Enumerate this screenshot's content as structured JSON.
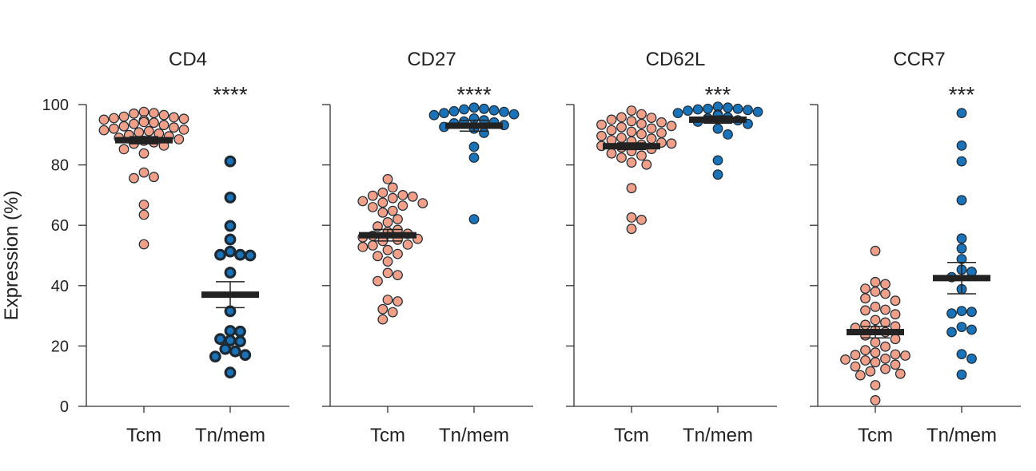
{
  "chart_data": {
    "type": "scatter",
    "ylabel": "Expression (%)",
    "ylim": [
      0,
      100
    ],
    "yticks": [
      0,
      20,
      40,
      60,
      80,
      100
    ],
    "categories": [
      "Tcm",
      "Tn/mem"
    ],
    "colors": {
      "Tcm": "#f0a088",
      "Tn/mem": "#1a73b8",
      "mean_bar": "#222222"
    },
    "panels": [
      {
        "title": "CD4",
        "significance": "****",
        "groups": [
          {
            "category": "Tcm",
            "mean": 88.2,
            "sem": 1.2,
            "values": [
              97.6,
              97.0,
              96.5,
              97.2,
              96.0,
              95.5,
              95.0,
              95.8,
              95.3,
              94.8,
              94.2,
              94.0,
              93.6,
              93.2,
              92.8,
              92.4,
              92.0,
              91.7,
              91.5,
              91.2,
              90.8,
              90.4,
              89.9,
              89.5,
              89.0,
              88.5,
              88.0,
              87.5,
              87.0,
              86.4,
              85.2,
              83.8,
              77.5,
              76.0,
              75.6,
              66.8,
              63.5,
              53.7
            ]
          },
          {
            "category": "Tn/mem",
            "mean": 37.0,
            "sem": 4.3,
            "values": [
              81.2,
              69.2,
              59.8,
              55.3,
              51.3,
              50.2,
              50.2,
              50.0,
              44.3,
              31.5,
              25.0,
              24.8,
              22.3,
              21.8,
              21.5,
              19.0,
              18.2,
              17.0,
              16.5,
              11.2
            ]
          }
        ]
      },
      {
        "title": "CD27",
        "significance": "****",
        "groups": [
          {
            "category": "Tcm",
            "mean": 56.7,
            "sem": 1.9,
            "values": [
              75.3,
              72.5,
              70.8,
              70.0,
              69.8,
              69.5,
              69.0,
              68.0,
              67.5,
              67.3,
              66.5,
              66.0,
              64.8,
              64.2,
              62.0,
              61.0,
              59.6,
              58.5,
              57.8,
              57.2,
              56.5,
              56.0,
              55.5,
              55.2,
              54.8,
              53.6,
              53.3,
              52.8,
              51.8,
              50.5,
              49.8,
              48.0,
              44.2,
              43.5,
              41.5,
              35.3,
              34.8,
              32.2,
              31.2,
              28.8
            ]
          },
          {
            "category": "Tn/mem",
            "mean": 93.0,
            "sem": 1.8,
            "values": [
              99.0,
              98.6,
              98.4,
              98.1,
              97.8,
              97.6,
              97.2,
              96.8,
              96.5,
              95.4,
              94.8,
              94.4,
              94.1,
              93.8,
              93.2,
              92.6,
              92.0,
              90.6,
              86.0,
              82.4,
              62.0
            ]
          }
        ]
      },
      {
        "title": "CD62L",
        "significance": "***",
        "groups": [
          {
            "category": "Tcm",
            "mean": 86.2,
            "sem": 1.1,
            "values": [
              98.0,
              96.8,
              95.8,
              95.6,
              95.0,
              94.5,
              94.1,
              93.6,
              93.3,
              92.9,
              92.5,
              92.1,
              91.5,
              91.0,
              90.6,
              90.2,
              89.6,
              89.0,
              88.7,
              88.2,
              87.8,
              87.4,
              87.1,
              86.7,
              86.3,
              85.8,
              85.3,
              84.6,
              83.8,
              83.1,
              82.4,
              80.8,
              80.1,
              72.3,
              62.6,
              61.8,
              58.8
            ]
          },
          {
            "category": "Tn/mem",
            "mean": 95.0,
            "sem": 1.2,
            "values": [
              99.3,
              99.0,
              98.6,
              98.6,
              98.4,
              98.2,
              98.0,
              97.6,
              97.2,
              96.7,
              96.4,
              95.8,
              95.4,
              94.8,
              94.3,
              93.6,
              92.0,
              90.1,
              81.5,
              76.8
            ]
          }
        ]
      },
      {
        "title": "CCR7",
        "significance": "***",
        "groups": [
          {
            "category": "Tcm",
            "mean": 24.6,
            "sem": 1.9,
            "values": [
              51.5,
              41.2,
              40.5,
              39.0,
              38.0,
              37.3,
              35.8,
              35.0,
              33.0,
              32.0,
              31.8,
              30.5,
              28.6,
              27.8,
              27.0,
              26.5,
              26.0,
              25.3,
              24.6,
              23.5,
              22.3,
              21.2,
              19.8,
              18.6,
              17.8,
              17.2,
              17.0,
              16.8,
              15.8,
              15.5,
              15.2,
              14.6,
              13.8,
              13.2,
              12.4,
              11.6,
              10.8,
              10.3,
              7.0,
              2.0
            ]
          },
          {
            "category": "Tn/mem",
            "mean": 42.5,
            "sem": 5.2,
            "values": [
              97.2,
              86.4,
              81.2,
              68.3,
              55.6,
              52.3,
              48.8,
              45.3,
              44.6,
              42.8,
              38.8,
              31.6,
              31.3,
              30.8,
              26.3,
              25.4,
              24.6,
              17.3,
              15.8,
              10.5
            ]
          }
        ]
      }
    ]
  }
}
